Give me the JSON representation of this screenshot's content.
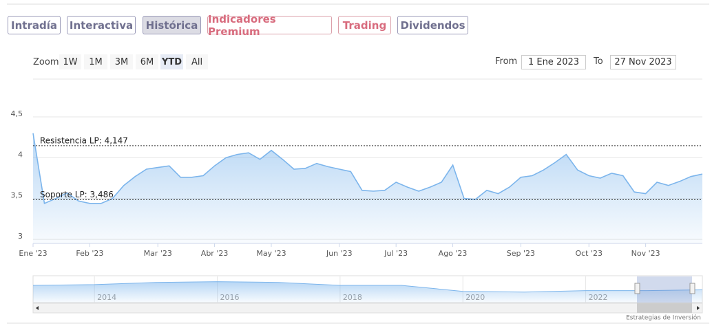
{
  "tabs": [
    "Intradía",
    "Interactiva",
    "Histórica",
    "Indicadores Premium",
    "Trading",
    "Dividendos"
  ],
  "zoom": {
    "label": "Zoom",
    "buttons": [
      "1W",
      "1M",
      "3M",
      "6M",
      "YTD",
      "All"
    ]
  },
  "range": {
    "from_label": "From",
    "from": "1 Ene 2023",
    "to_label": "To",
    "to": "27 Nov 2023"
  },
  "credits": "Estrategias de Inversión",
  "chart_data": [
    {
      "type": "area",
      "color": "#7cb5ec",
      "categories": [
        "Ene '23",
        null,
        null,
        null,
        null,
        "Feb '23",
        null,
        null,
        null,
        null,
        null,
        "Mar '23",
        null,
        null,
        null,
        null,
        "Abr '23",
        null,
        null,
        null,
        null,
        "May '23",
        null,
        null,
        null,
        null,
        null,
        "Jun '23",
        null,
        null,
        null,
        null,
        "Jul '23",
        null,
        null,
        null,
        null,
        "Ago '23",
        null,
        null,
        null,
        null,
        null,
        "Sep '23",
        null,
        null,
        null,
        null,
        null,
        "Oct '23",
        null,
        null,
        null,
        null,
        "Nov '23",
        null,
        null,
        null,
        null,
        null
      ],
      "values": [
        4.3,
        3.44,
        3.5,
        3.57,
        3.47,
        3.44,
        3.44,
        3.5,
        3.66,
        3.77,
        3.86,
        3.88,
        3.9,
        3.76,
        3.76,
        3.78,
        3.9,
        4.0,
        4.04,
        4.06,
        3.98,
        4.09,
        3.98,
        3.86,
        3.87,
        3.93,
        3.89,
        3.86,
        3.83,
        3.6,
        3.59,
        3.6,
        3.7,
        3.64,
        3.59,
        3.64,
        3.7,
        3.91,
        3.5,
        3.49,
        3.6,
        3.56,
        3.64,
        3.76,
        3.78,
        3.85,
        3.94,
        4.04,
        3.85,
        3.78,
        3.75,
        3.81,
        3.78,
        3.58,
        3.56,
        3.7,
        3.66,
        3.71,
        3.77,
        3.8
      ],
      "ylim": [
        2.95,
        4.5
      ],
      "yticks": [
        3,
        {
          "value": 3.5,
          "label": "3,5"
        },
        4,
        {
          "value": 4.5,
          "label": "4,5"
        }
      ],
      "grid": true,
      "reference_lines": [
        {
          "label": "Resistencia LP: 4,147",
          "value": 4.147
        },
        {
          "label": "Soporte LP: 3,486",
          "value": 3.486
        }
      ]
    },
    {
      "type": "navigator",
      "color": "#7cb5ec",
      "x": [
        2013,
        2014,
        2015,
        2016,
        2017,
        2018,
        2019,
        2020,
        2021,
        2022,
        2023,
        2023.9
      ],
      "values": [
        4.3,
        4.4,
        4.7,
        4.8,
        4.7,
        4.3,
        4.3,
        3.5,
        3.4,
        3.6,
        3.6,
        3.7
      ],
      "xlim": [
        2013,
        2023.9
      ],
      "ylim": [
        2,
        5.5
      ],
      "xticks": [
        2014,
        2016,
        2018,
        2020,
        2022
      ]
    }
  ]
}
